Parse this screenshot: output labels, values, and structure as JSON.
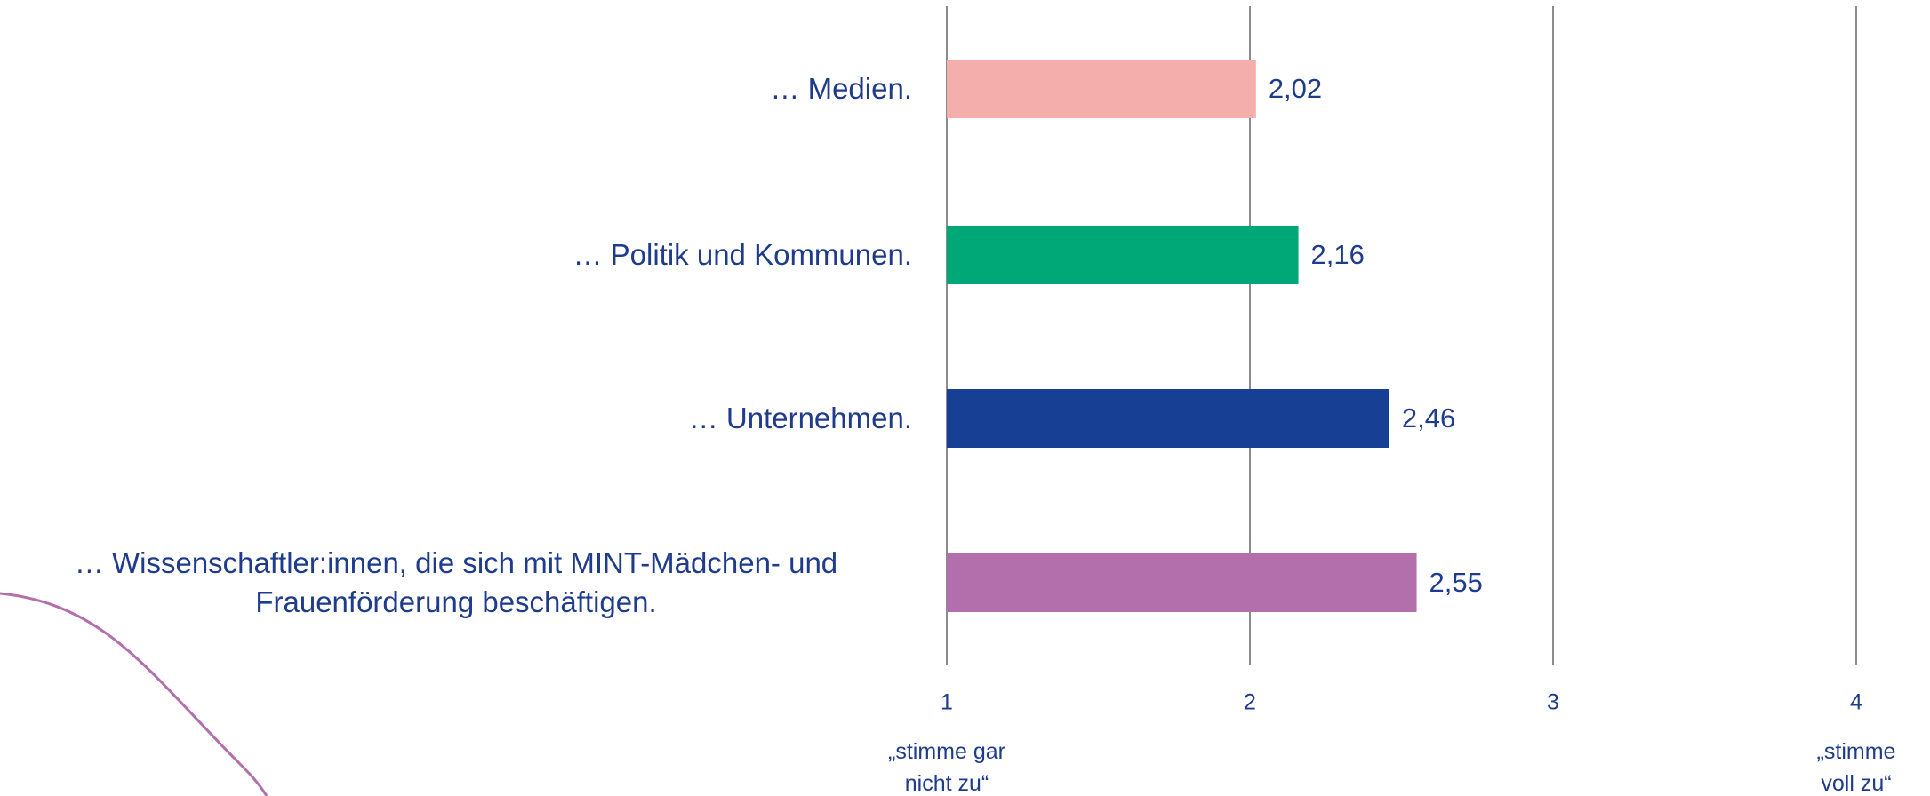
{
  "chart_data": {
    "type": "barh",
    "categories": [
      "… Medien.",
      "… Politik und Kommunen.",
      "… Unternehmen.",
      "… Wissenschaftler:innen, die sich mit MINT-Mädchen- und Frauenförderung beschäftigen."
    ],
    "values": [
      2.02,
      2.16,
      2.46,
      2.55
    ],
    "value_labels": [
      "2,02",
      "2,16",
      "2,46",
      "2,55"
    ],
    "colors": [
      "#f4aeac",
      "#00a878",
      "#174094",
      "#b26fab"
    ],
    "xlim": [
      1,
      4
    ],
    "xticks": [
      1,
      2,
      3,
      4
    ],
    "grid": true,
    "axis_notes": [
      {
        "value": 1,
        "label": "„stimme gar nicht zu“"
      },
      {
        "value": 4,
        "label": "„stimme voll zu“"
      }
    ]
  }
}
